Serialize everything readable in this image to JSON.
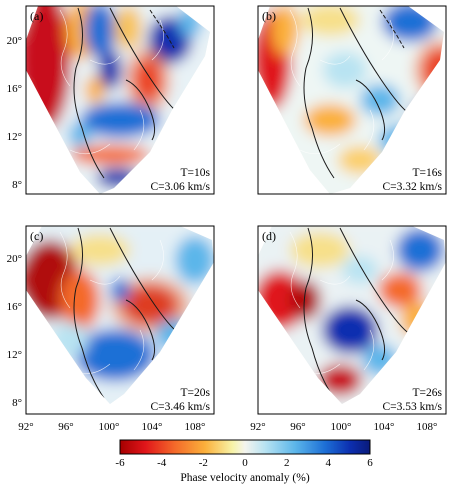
{
  "panels": [
    {
      "label": "(a)",
      "period": "T=10s",
      "velocity": "C=3.06 km/s"
    },
    {
      "label": "(b)",
      "period": "T=16s",
      "velocity": "C=3.32 km/s"
    },
    {
      "label": "(c)",
      "period": "T=20s",
      "velocity": "C=3.46 km/s"
    },
    {
      "label": "(d)",
      "period": "T=26s",
      "velocity": "C=3.53 km/s"
    }
  ],
  "axes": {
    "lat_ticks": [
      "20°",
      "16°",
      "12°",
      "8°"
    ],
    "lon_ticks": [
      "92°",
      "96°",
      "100°",
      "104°",
      "108°"
    ]
  },
  "colorbar": {
    "title": "Phase velocity anomaly (%)",
    "ticks": [
      "-6",
      "-4",
      "-2",
      "0",
      "2",
      "4",
      "6"
    ],
    "range": [
      -6,
      6
    ],
    "colors": [
      "#a50000",
      "#e0151a",
      "#f46a2a",
      "#fbb03b",
      "#f7f3a8",
      "#f4f4ee",
      "#b8e3f2",
      "#5cb6ea",
      "#1d6fd6",
      "#0c2fb0",
      "#0a1a7a"
    ]
  },
  "style": {
    "frame_color": "#000000",
    "coast_color": "#ffffff",
    "fault_color": "#1a1a1a"
  }
}
